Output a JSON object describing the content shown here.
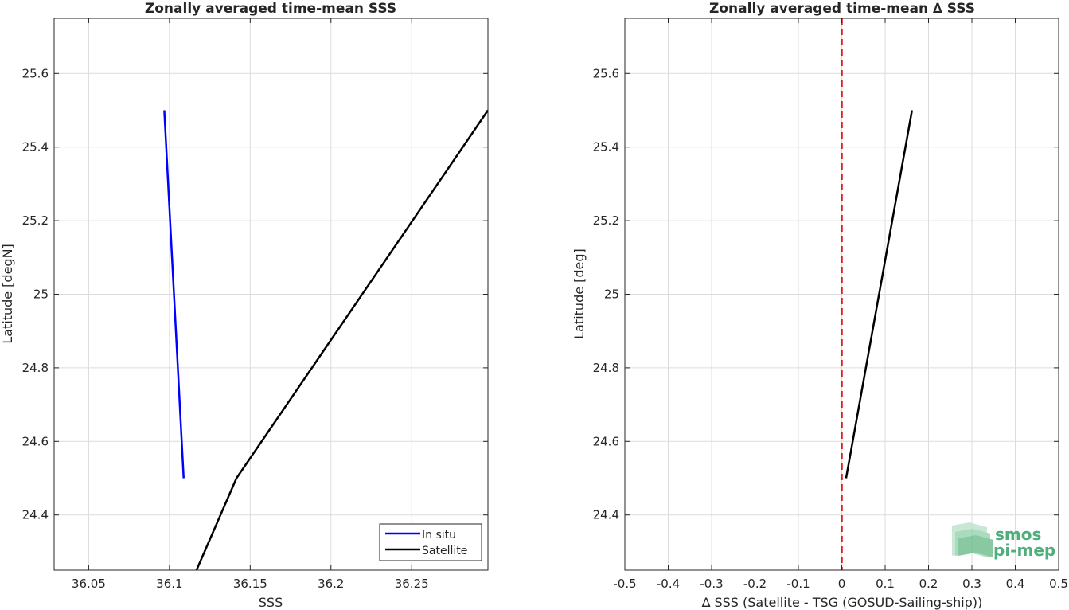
{
  "chart_data": [
    {
      "type": "line",
      "title": "Zonally averaged time-mean SSS",
      "xlabel": "SSS",
      "ylabel": "Latitude [degN]",
      "xlim": [
        36.0286,
        36.2972
      ],
      "ylim": [
        24.25,
        25.75
      ],
      "xticks": [
        36.05,
        36.1,
        36.15,
        36.2,
        36.25
      ],
      "xtick_labels": [
        "36.05",
        "36.1",
        "36.15",
        "36.2",
        "36.25"
      ],
      "yticks": [
        24.4,
        24.6,
        24.8,
        25.0,
        25.2,
        25.4,
        25.6
      ],
      "ytick_labels": [
        "24.4",
        "24.6",
        "24.8",
        "25",
        "25.2",
        "25.4",
        "25.6"
      ],
      "grid": true,
      "legend_position": "bottom-right",
      "series": [
        {
          "name": "In situ",
          "color": "#0000ff",
          "points": [
            [
              36.1088,
              24.5
            ],
            [
              36.0968,
              25.5
            ]
          ]
        },
        {
          "name": "Satellite",
          "color": "#000000",
          "points": [
            [
              36.1118,
              24.2
            ],
            [
              36.1415,
              24.5
            ],
            [
              36.2972,
              25.5
            ]
          ]
        }
      ]
    },
    {
      "type": "line",
      "title": "Zonally averaged time-mean ∆ SSS",
      "xlabel": "∆ SSS (Satellite - TSG (GOSUD-Sailing-ship))",
      "ylabel": "Latitude [deg]",
      "xlim": [
        -0.5,
        0.5
      ],
      "ylim": [
        24.25,
        25.75
      ],
      "xticks": [
        -0.5,
        -0.4,
        -0.3,
        -0.2,
        -0.1,
        0,
        0.1,
        0.2,
        0.3,
        0.4,
        0.5
      ],
      "xtick_labels": [
        "-0.5",
        "-0.4",
        "-0.3",
        "-0.2",
        "-0.1",
        "0",
        "0.1",
        "0.2",
        "0.3",
        "0.4",
        "0.5"
      ],
      "yticks": [
        24.4,
        24.6,
        24.8,
        25.0,
        25.2,
        25.4,
        25.6
      ],
      "ytick_labels": [
        "24.4",
        "24.6",
        "24.8",
        "25",
        "25.2",
        "25.4",
        "25.6"
      ],
      "grid": true,
      "reference_line": {
        "x": 0,
        "color": "#e41a1c",
        "style": "dashed"
      },
      "series": [
        {
          "color": "#000000",
          "points": [
            [
              0.01,
              24.5
            ],
            [
              0.162,
              25.5
            ]
          ]
        }
      ]
    }
  ],
  "logo": {
    "line1": "smos",
    "line2": "pi-mep",
    "color": "#4fae7c"
  }
}
